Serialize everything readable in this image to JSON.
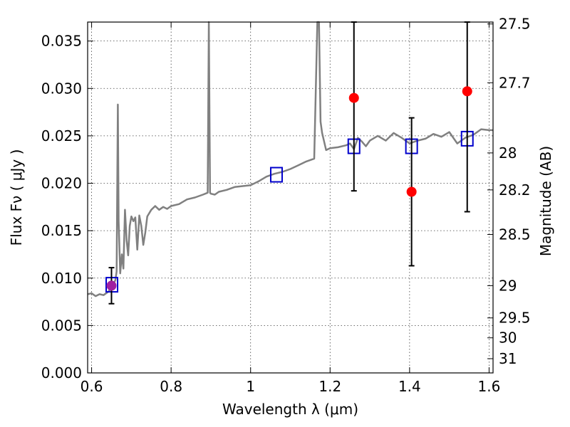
{
  "chart_data": {
    "type": "scatter",
    "xlabel": "Wavelength  λ (μm)",
    "ylabel": "Flux  Fν  ( μJy )",
    "y2label": "Magnitude (AB)",
    "xlim": [
      0.59,
      1.61
    ],
    "ylim": [
      0.0,
      0.037
    ],
    "x_ticks": [
      0.6,
      0.8,
      1.0,
      1.2,
      1.4,
      1.6
    ],
    "x_tick_labels": [
      "0.6",
      "0.8",
      "1",
      "1.2",
      "1.4",
      "1.6"
    ],
    "y_ticks": [
      0.0,
      0.005,
      0.01,
      0.015,
      0.02,
      0.025,
      0.03,
      0.035
    ],
    "y_tick_labels": [
      "0.000",
      "0.005",
      "0.010",
      "0.015",
      "0.020",
      "0.025",
      "0.030",
      "0.035"
    ],
    "mag_ticks": [
      {
        "label": "27.5",
        "flux": 0.0368
      },
      {
        "label": "27.7",
        "flux": 0.0306
      },
      {
        "label": "28",
        "flux": 0.0232
      },
      {
        "label": "28.2",
        "flux": 0.0193
      },
      {
        "label": "28.5",
        "flux": 0.0146
      },
      {
        "label": "29",
        "flux": 0.0092
      },
      {
        "label": "29.5",
        "flux": 0.0058
      },
      {
        "label": "30",
        "flux": 0.0037
      },
      {
        "label": "31",
        "flux": 0.0015
      }
    ],
    "grid": true,
    "colors": {
      "model": "#808080",
      "observed": "#ff0000",
      "observed_overlap": "#a020a0",
      "model_phot": "#0000cc",
      "errorbar": "#000000"
    },
    "series": [
      {
        "type": "line",
        "x": [
          0.59,
          0.6,
          0.61,
          0.62,
          0.63,
          0.64,
          0.65,
          0.655,
          0.66,
          0.663,
          0.666,
          0.668,
          0.672,
          0.676,
          0.68,
          0.684,
          0.688,
          0.692,
          0.696,
          0.7,
          0.705,
          0.71,
          0.715,
          0.72,
          0.725,
          0.73,
          0.735,
          0.74,
          0.75,
          0.76,
          0.77,
          0.78,
          0.79,
          0.8,
          0.82,
          0.84,
          0.86,
          0.88,
          0.892,
          0.895,
          0.898,
          0.9,
          0.91,
          0.92,
          0.94,
          0.96,
          0.98,
          1.0,
          1.02,
          1.04,
          1.06,
          1.08,
          1.1,
          1.12,
          1.14,
          1.16,
          1.168,
          1.172,
          1.176,
          1.18,
          1.19,
          1.2,
          1.22,
          1.24,
          1.25,
          1.26,
          1.27,
          1.28,
          1.29,
          1.3,
          1.32,
          1.34,
          1.36,
          1.38,
          1.4,
          1.42,
          1.44,
          1.46,
          1.48,
          1.5,
          1.52,
          1.54,
          1.56,
          1.58,
          1.6,
          1.61
        ],
        "y": [
          0.0083,
          0.0084,
          0.0081,
          0.0083,
          0.0082,
          0.0085,
          0.0089,
          0.0094,
          0.0098,
          0.0107,
          0.0283,
          0.016,
          0.0105,
          0.0125,
          0.011,
          0.0172,
          0.014,
          0.0124,
          0.0155,
          0.0165,
          0.016,
          0.0164,
          0.013,
          0.0166,
          0.0155,
          0.0135,
          0.0148,
          0.0165,
          0.0172,
          0.0176,
          0.0172,
          0.0175,
          0.0173,
          0.0176,
          0.0178,
          0.0183,
          0.0185,
          0.0188,
          0.019,
          0.037,
          0.019,
          0.0189,
          0.0188,
          0.0191,
          0.0193,
          0.0196,
          0.0197,
          0.0198,
          0.0202,
          0.0207,
          0.021,
          0.0212,
          0.0215,
          0.0219,
          0.0223,
          0.0226,
          0.037,
          0.037,
          0.0265,
          0.0253,
          0.0235,
          0.0237,
          0.0238,
          0.024,
          0.0242,
          0.0236,
          0.0248,
          0.0244,
          0.0239,
          0.0245,
          0.025,
          0.0245,
          0.0253,
          0.0248,
          0.0242,
          0.0245,
          0.0247,
          0.0252,
          0.0249,
          0.0254,
          0.0242,
          0.0248,
          0.0251,
          0.0257,
          0.0256,
          0.0256
        ]
      },
      {
        "type": "model_phot",
        "x": [
          0.651,
          1.065,
          1.26,
          1.405,
          1.545
        ],
        "y": [
          0.0093,
          0.0209,
          0.0239,
          0.0239,
          0.0247
        ]
      },
      {
        "type": "observed",
        "x": [
          0.65,
          1.26,
          1.405,
          1.545
        ],
        "y": [
          0.0092,
          0.029,
          0.0191,
          0.0297
        ],
        "yerr_low": [
          0.0019,
          0.0098,
          0.0078,
          0.0127
        ],
        "yerr_high": [
          0.0019,
          0.008,
          0.0078,
          0.0073
        ]
      }
    ]
  }
}
